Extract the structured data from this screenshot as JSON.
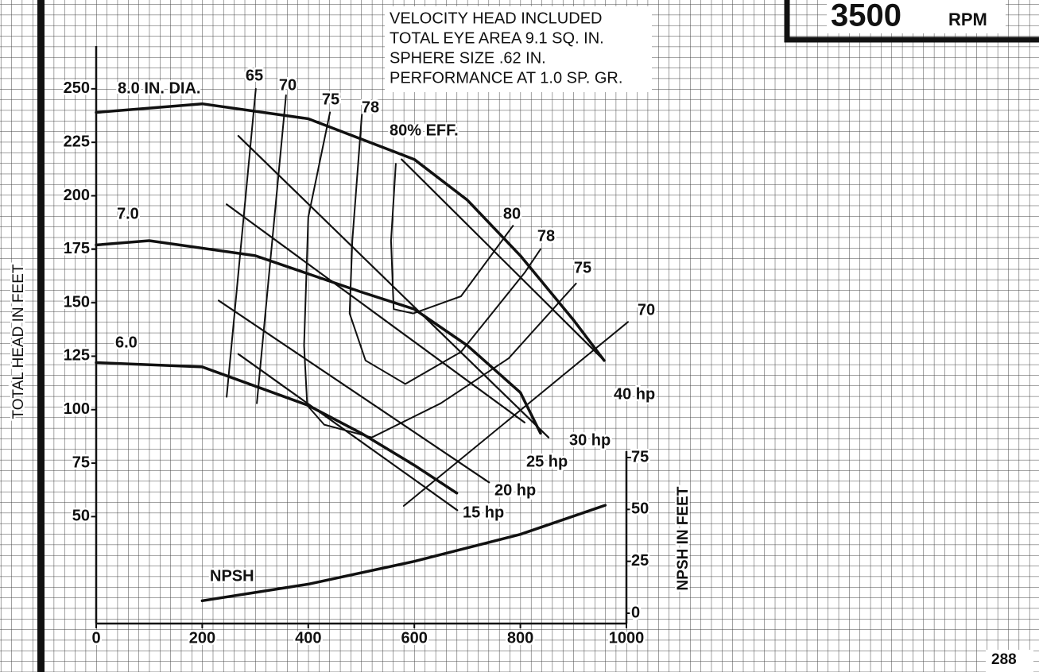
{
  "chart_data": {
    "type": "line",
    "notes": [
      "VELOCITY HEAD INCLUDED",
      "TOTAL EYE AREA 9.1 SQ. IN.",
      "SPHERE SIZE .62 IN.",
      "PERFORMANCE AT 1.0 SP. GR."
    ],
    "rpm": "3500",
    "rpm_unit": "RPM",
    "page_number": "288",
    "y_label": "TOTAL HEAD IN FEET",
    "y2_label": "NPSH IN FEET",
    "xlim": [
      0,
      1000
    ],
    "xticks": [
      0,
      200,
      400,
      600,
      800,
      1000
    ],
    "ylim": [
      0,
      270
    ],
    "yticks": [
      50,
      75,
      100,
      125,
      150,
      175,
      200,
      225,
      250
    ],
    "y2lim": [
      0,
      75
    ],
    "y2ticks": [
      0,
      25,
      50,
      75
    ],
    "grid": true,
    "series": [
      {
        "name": "8.0 IN. DIA.",
        "color": "#111",
        "kind": "diameter",
        "x": [
          0,
          200,
          400,
          600,
          700,
          800,
          900,
          958
        ],
        "values": [
          239,
          243,
          236,
          217,
          198,
          172,
          142,
          123
        ]
      },
      {
        "name": "7.0",
        "color": "#111",
        "kind": "diameter",
        "x": [
          0,
          100,
          300,
          500,
          600,
          700,
          800,
          838
        ],
        "values": [
          177,
          179,
          172,
          155,
          147,
          130,
          108,
          89
        ]
      },
      {
        "name": "6.0",
        "color": "#111",
        "kind": "diameter",
        "x": [
          0,
          200,
          400,
          500,
          600,
          680
        ],
        "values": [
          122,
          120,
          102,
          89,
          74,
          61
        ]
      },
      {
        "name": "65",
        "color": "#111",
        "kind": "efficiency",
        "x": [
          246,
          301
        ],
        "values": [
          106,
          250
        ]
      },
      {
        "name": "70",
        "end_label": "70",
        "color": "#111",
        "kind": "efficiency",
        "x": [
          303,
          358,
          null,
          580,
          1003
        ],
        "values": [
          103,
          247,
          null,
          55,
          141
        ]
      },
      {
        "name": "75",
        "end_label": "75",
        "color": "#111",
        "kind": "efficiency",
        "x": [
          441,
          400,
          392,
          398,
          430,
          520,
          650,
          778,
          905
        ],
        "values": [
          239,
          190,
          130,
          102,
          93,
          87,
          103,
          124,
          159
        ]
      },
      {
        "name": "78",
        "end_label": "78",
        "color": "#111",
        "kind": "efficiency",
        "x": [
          501,
          483,
          478,
          508,
          583,
          688,
          808,
          838
        ],
        "values": [
          238,
          179,
          145,
          123,
          112,
          127,
          164,
          175
        ]
      },
      {
        "name": "80% EFF.",
        "end_label": "80",
        "color": "#111",
        "kind": "efficiency",
        "x": [
          565,
          556,
          561,
          598,
          688,
          786
        ],
        "values": [
          215,
          179,
          147,
          145,
          153,
          186
        ]
      },
      {
        "name": "40 hp",
        "color": "#111",
        "kind": "power",
        "x": [
          576,
          958
        ],
        "values": [
          217,
          123
        ]
      },
      {
        "name": "30 hp",
        "color": "#111",
        "kind": "power",
        "x": [
          268,
          853
        ],
        "values": [
          228,
          87
        ]
      },
      {
        "name": "25 hp",
        "color": "#111",
        "kind": "power",
        "x": [
          246,
          808
        ],
        "values": [
          196,
          94
        ]
      },
      {
        "name": "20 hp",
        "color": "#111",
        "kind": "power",
        "x": [
          231,
          741
        ],
        "values": [
          151,
          66
        ]
      },
      {
        "name": "15 hp",
        "color": "#111",
        "kind": "power",
        "x": [
          268,
          681
        ],
        "values": [
          126,
          53
        ]
      },
      {
        "name": "NPSH",
        "color": "#111",
        "kind": "npsh",
        "axis": "y2",
        "x": [
          200,
          400,
          600,
          800,
          960
        ],
        "values": [
          6,
          14,
          25,
          38,
          52
        ]
      }
    ]
  }
}
